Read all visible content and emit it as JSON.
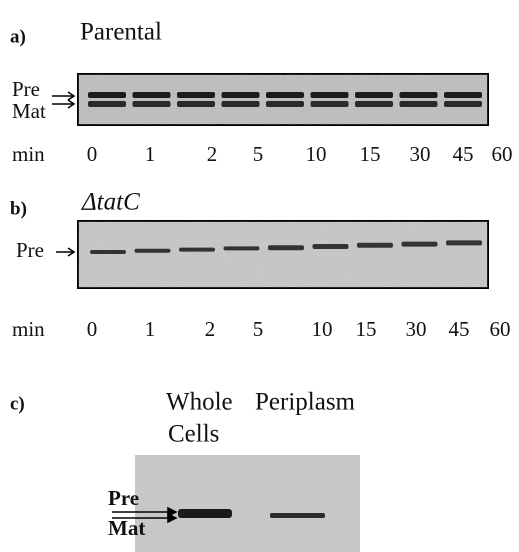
{
  "panel_a": {
    "label": "a)",
    "title": "Parental",
    "pre": "Pre",
    "mat": "Mat",
    "axis": "min",
    "lanes": [
      "0",
      "1",
      "2",
      "5",
      "10",
      "15",
      "30",
      "45",
      "60"
    ]
  },
  "panel_b": {
    "label": "b)",
    "title": "ΔtatC",
    "pre": "Pre",
    "axis": "min",
    "lanes": [
      "0",
      "1",
      "2",
      "5",
      "10",
      "15",
      "30",
      "45",
      "60"
    ]
  },
  "panel_c": {
    "label": "c)",
    "col1_line1": "Whole",
    "col1_line2": "Cells",
    "col2": "Periplasm",
    "pre": "Pre",
    "mat": "Mat"
  }
}
